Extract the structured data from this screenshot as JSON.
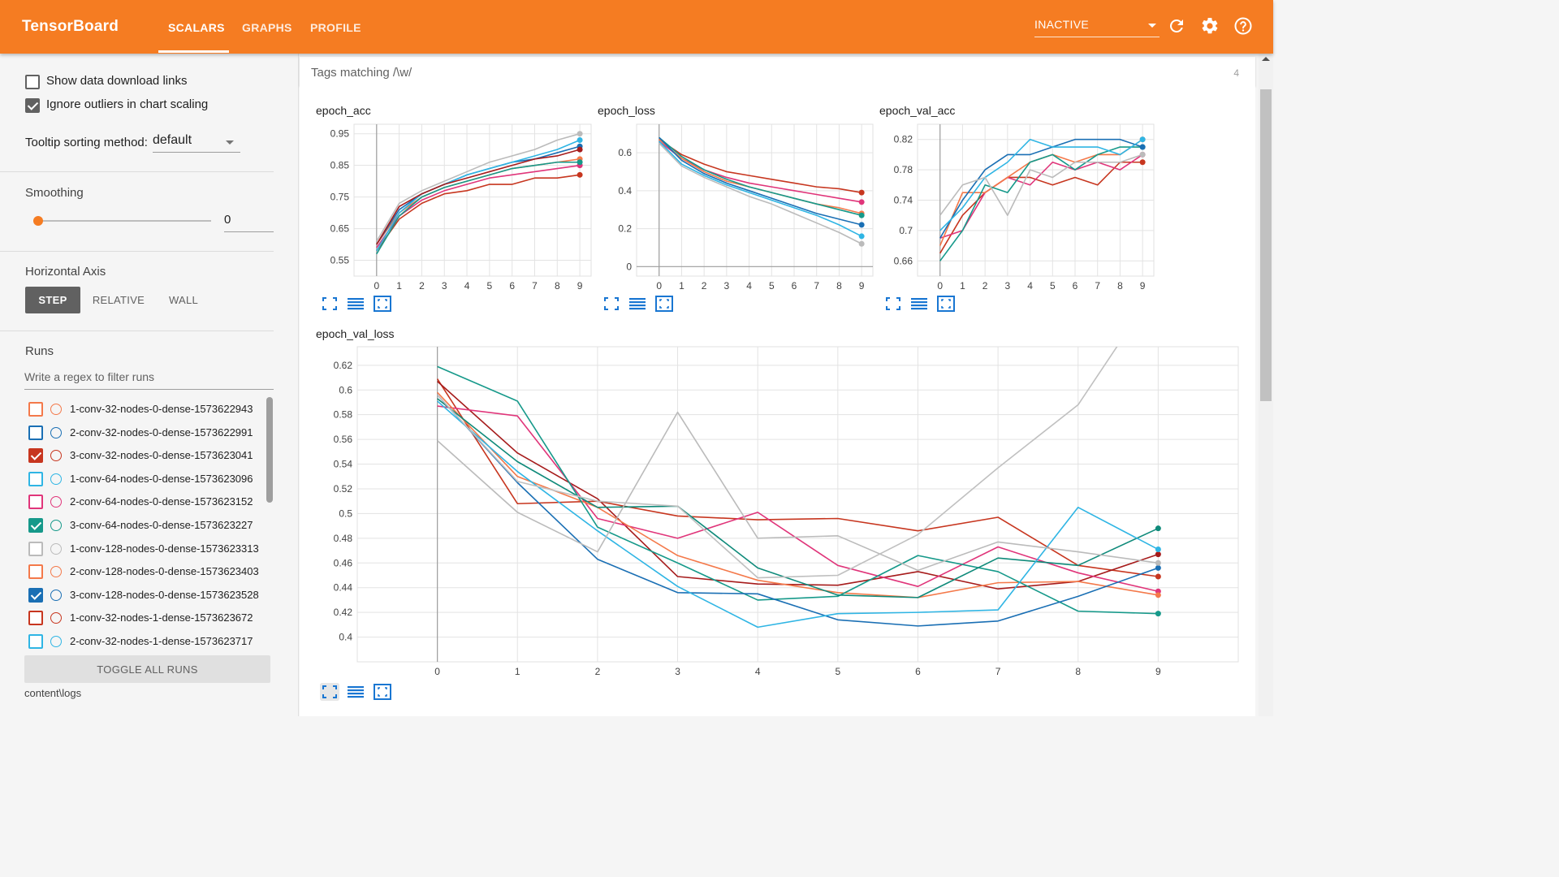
{
  "header": {
    "brand": "TensorBoard",
    "tabs": [
      {
        "label": "SCALARS",
        "active": true
      },
      {
        "label": "GRAPHS",
        "active": false
      },
      {
        "label": "PROFILE",
        "active": false
      }
    ],
    "status_select": "INACTIVE",
    "accent_color": "#f57c22"
  },
  "sidebar": {
    "show_download_links": {
      "label": "Show data download links",
      "checked": false
    },
    "ignore_outliers": {
      "label": "Ignore outliers in chart scaling",
      "checked": true
    },
    "tooltip_label": "Tooltip sorting method:",
    "tooltip_value": "default",
    "smoothing": {
      "title": "Smoothing",
      "value": "0",
      "slider_fraction": 0
    },
    "horizontal_axis": {
      "title": "Horizontal Axis",
      "options": [
        {
          "label": "STEP",
          "active": true
        },
        {
          "label": "RELATIVE",
          "active": false
        },
        {
          "label": "WALL",
          "active": false
        }
      ]
    },
    "runs_title": "Runs",
    "runs_filter_placeholder": "Write a regex to filter runs",
    "runs": [
      {
        "name": "1-conv-32-nodes-0-dense-1573622943",
        "color": "#f4794a",
        "checked": false
      },
      {
        "name": "2-conv-32-nodes-0-dense-1573622991",
        "color": "#1a6fb4",
        "checked": false
      },
      {
        "name": "3-conv-32-nodes-0-dense-1573623041",
        "color": "#c7361f",
        "checked": true
      },
      {
        "name": "1-conv-64-nodes-0-dense-1573623096",
        "color": "#2fb5e4",
        "checked": false
      },
      {
        "name": "2-conv-64-nodes-0-dense-1573623152",
        "color": "#e0357a",
        "checked": false
      },
      {
        "name": "3-conv-64-nodes-0-dense-1573623227",
        "color": "#16998a",
        "checked": true
      },
      {
        "name": "1-conv-128-nodes-0-dense-1573623313",
        "color": "#bbbbbb",
        "checked": false
      },
      {
        "name": "2-conv-128-nodes-0-dense-1573623403",
        "color": "#f4794a",
        "checked": false
      },
      {
        "name": "3-conv-128-nodes-0-dense-1573623528",
        "color": "#1a6fb4",
        "checked": true
      },
      {
        "name": "1-conv-32-nodes-1-dense-1573623672",
        "color": "#c7361f",
        "checked": false
      },
      {
        "name": "2-conv-32-nodes-1-dense-1573623717",
        "color": "#2fb5e4",
        "checked": false
      }
    ],
    "toggle_all_label": "TOGGLE ALL RUNS",
    "log_dir": "content\\logs"
  },
  "main": {
    "tags_label": "Tags matching /\\w/",
    "tags_count": "4"
  },
  "chart_data": [
    {
      "type": "line",
      "title": "epoch_acc",
      "x": [
        0,
        1,
        2,
        3,
        4,
        5,
        6,
        7,
        8,
        9
      ],
      "xlim": [
        -1,
        9.5
      ],
      "ylim": [
        0.5,
        0.98
      ],
      "yticks": [
        0.55,
        0.65,
        0.75,
        0.85,
        0.95
      ],
      "ytick_labels": [
        "0.55",
        "0.65",
        "0.75",
        "0.85",
        "0.95"
      ],
      "grid": true,
      "series": [
        {
          "color": "#c7361f",
          "values": [
            0.58,
            0.68,
            0.73,
            0.76,
            0.77,
            0.79,
            0.79,
            0.81,
            0.81,
            0.82
          ]
        },
        {
          "color": "#e0357a",
          "values": [
            0.59,
            0.69,
            0.74,
            0.77,
            0.79,
            0.81,
            0.82,
            0.83,
            0.84,
            0.85
          ]
        },
        {
          "color": "#f4794a",
          "values": [
            0.6,
            0.7,
            0.75,
            0.78,
            0.8,
            0.82,
            0.84,
            0.85,
            0.86,
            0.87
          ]
        },
        {
          "color": "#16998a",
          "values": [
            0.57,
            0.69,
            0.75,
            0.78,
            0.8,
            0.82,
            0.84,
            0.85,
            0.86,
            0.86
          ]
        },
        {
          "color": "#1a6fb4",
          "values": [
            0.6,
            0.71,
            0.76,
            0.79,
            0.82,
            0.84,
            0.86,
            0.87,
            0.89,
            0.91
          ]
        },
        {
          "color": "#2fb5e4",
          "values": [
            0.58,
            0.7,
            0.76,
            0.79,
            0.82,
            0.84,
            0.86,
            0.88,
            0.9,
            0.93
          ]
        },
        {
          "color": "#bbbbbb",
          "values": [
            0.61,
            0.73,
            0.77,
            0.8,
            0.83,
            0.86,
            0.88,
            0.9,
            0.93,
            0.95
          ]
        },
        {
          "color": "#a61b1b",
          "values": [
            0.6,
            0.72,
            0.76,
            0.79,
            0.81,
            0.83,
            0.85,
            0.87,
            0.88,
            0.9
          ]
        }
      ]
    },
    {
      "type": "line",
      "title": "epoch_loss",
      "x": [
        0,
        1,
        2,
        3,
        4,
        5,
        6,
        7,
        8,
        9
      ],
      "xlim": [
        -1,
        9.5
      ],
      "ylim": [
        -0.05,
        0.75
      ],
      "yticks": [
        0,
        0.2,
        0.4,
        0.6
      ],
      "ytick_labels": [
        "0",
        "0.2",
        "0.4",
        "0.6"
      ],
      "grid": true,
      "series": [
        {
          "color": "#c7361f",
          "values": [
            0.67,
            0.59,
            0.54,
            0.5,
            0.48,
            0.46,
            0.44,
            0.42,
            0.41,
            0.39
          ]
        },
        {
          "color": "#e0357a",
          "values": [
            0.66,
            0.57,
            0.51,
            0.47,
            0.44,
            0.42,
            0.4,
            0.38,
            0.36,
            0.34
          ]
        },
        {
          "color": "#f4794a",
          "values": [
            0.67,
            0.57,
            0.5,
            0.45,
            0.42,
            0.39,
            0.36,
            0.33,
            0.31,
            0.28
          ]
        },
        {
          "color": "#16998a",
          "values": [
            0.68,
            0.58,
            0.51,
            0.46,
            0.42,
            0.39,
            0.36,
            0.33,
            0.3,
            0.27
          ]
        },
        {
          "color": "#1a6fb4",
          "values": [
            0.68,
            0.56,
            0.49,
            0.44,
            0.4,
            0.36,
            0.32,
            0.28,
            0.25,
            0.22
          ]
        },
        {
          "color": "#2fb5e4",
          "values": [
            0.66,
            0.54,
            0.48,
            0.43,
            0.39,
            0.35,
            0.31,
            0.27,
            0.22,
            0.16
          ]
        },
        {
          "color": "#bbbbbb",
          "values": [
            0.65,
            0.53,
            0.47,
            0.42,
            0.37,
            0.33,
            0.28,
            0.23,
            0.18,
            0.12
          ]
        }
      ]
    },
    {
      "type": "line",
      "title": "epoch_val_acc",
      "x": [
        0,
        1,
        2,
        3,
        4,
        5,
        6,
        7,
        8,
        9
      ],
      "xlim": [
        -1,
        9.5
      ],
      "ylim": [
        0.64,
        0.84
      ],
      "yticks": [
        0.66,
        0.7,
        0.74,
        0.78,
        0.82
      ],
      "ytick_labels": [
        "0.66",
        "0.7",
        "0.74",
        "0.78",
        "0.82"
      ],
      "grid": true,
      "series": [
        {
          "color": "#c7361f",
          "values": [
            0.67,
            0.72,
            0.75,
            0.77,
            0.77,
            0.76,
            0.77,
            0.76,
            0.79,
            0.79
          ]
        },
        {
          "color": "#e0357a",
          "values": [
            0.69,
            0.7,
            0.75,
            0.77,
            0.76,
            0.79,
            0.78,
            0.79,
            0.78,
            0.8
          ]
        },
        {
          "color": "#f4794a",
          "values": [
            0.68,
            0.75,
            0.75,
            0.77,
            0.79,
            0.8,
            0.79,
            0.8,
            0.8,
            0.82
          ]
        },
        {
          "color": "#16998a",
          "values": [
            0.66,
            0.7,
            0.76,
            0.75,
            0.79,
            0.8,
            0.78,
            0.8,
            0.81,
            0.81
          ]
        },
        {
          "color": "#1a6fb4",
          "values": [
            0.69,
            0.74,
            0.78,
            0.8,
            0.8,
            0.81,
            0.82,
            0.82,
            0.82,
            0.81
          ]
        },
        {
          "color": "#2fb5e4",
          "values": [
            0.7,
            0.73,
            0.77,
            0.79,
            0.82,
            0.81,
            0.81,
            0.81,
            0.8,
            0.82
          ]
        },
        {
          "color": "#bbbbbb",
          "values": [
            0.72,
            0.76,
            0.77,
            0.72,
            0.78,
            0.77,
            0.79,
            0.79,
            0.79,
            0.8
          ]
        }
      ]
    },
    {
      "type": "line",
      "title": "epoch_val_loss",
      "x": [
        0,
        1,
        2,
        3,
        4,
        5,
        6,
        7,
        8,
        9
      ],
      "xlim": [
        -1,
        10
      ],
      "ylim": [
        0.38,
        0.635
      ],
      "yticks": [
        0.4,
        0.42,
        0.44,
        0.46,
        0.48,
        0.5,
        0.52,
        0.54,
        0.56,
        0.58,
        0.6,
        0.62
      ],
      "ytick_labels": [
        "0.4",
        "0.42",
        "0.44",
        "0.46",
        "0.48",
        "0.5",
        "0.52",
        "0.54",
        "0.56",
        "0.58",
        "0.6",
        "0.62"
      ],
      "grid": true,
      "series": [
        {
          "color": "#c7361f",
          "values": [
            0.609,
            0.508,
            0.51,
            0.498,
            0.495,
            0.496,
            0.486,
            0.497,
            0.458,
            0.449
          ]
        },
        {
          "color": "#a61b1b",
          "values": [
            0.607,
            0.549,
            0.512,
            0.449,
            0.443,
            0.442,
            0.453,
            0.439,
            0.445,
            0.467
          ]
        },
        {
          "color": "#e0357a",
          "values": [
            0.587,
            0.579,
            0.496,
            0.48,
            0.501,
            0.458,
            0.441,
            0.473,
            0.452,
            0.437
          ]
        },
        {
          "color": "#f4794a",
          "values": [
            0.598,
            0.53,
            0.505,
            0.466,
            0.446,
            0.436,
            0.432,
            0.444,
            0.445,
            0.434
          ]
        },
        {
          "color": "#16998a",
          "values": [
            0.619,
            0.591,
            0.489,
            0.46,
            0.43,
            0.433,
            0.466,
            0.453,
            0.421,
            0.419
          ]
        },
        {
          "color": "#0f8a7a",
          "values": [
            0.593,
            0.542,
            0.505,
            0.506,
            0.456,
            0.434,
            0.432,
            0.464,
            0.458,
            0.488
          ]
        },
        {
          "color": "#1a6fb4",
          "values": [
            0.596,
            0.525,
            0.463,
            0.436,
            0.435,
            0.414,
            0.409,
            0.413,
            0.433,
            0.456
          ]
        },
        {
          "color": "#2fb5e4",
          "values": [
            0.591,
            0.534,
            0.486,
            0.441,
            0.408,
            0.419,
            0.42,
            0.422,
            0.505,
            0.471
          ]
        },
        {
          "color": "#bbbbbb",
          "values": [
            0.559,
            0.501,
            0.469,
            0.582,
            0.48,
            0.482,
            0.454,
            0.477,
            0.469,
            0.46
          ]
        },
        {
          "color": "#c0c0c0",
          "values": [
            0.596,
            0.526,
            0.51,
            0.506,
            0.448,
            0.45,
            0.483,
            0.537,
            0.588,
            0.685
          ]
        }
      ]
    }
  ]
}
